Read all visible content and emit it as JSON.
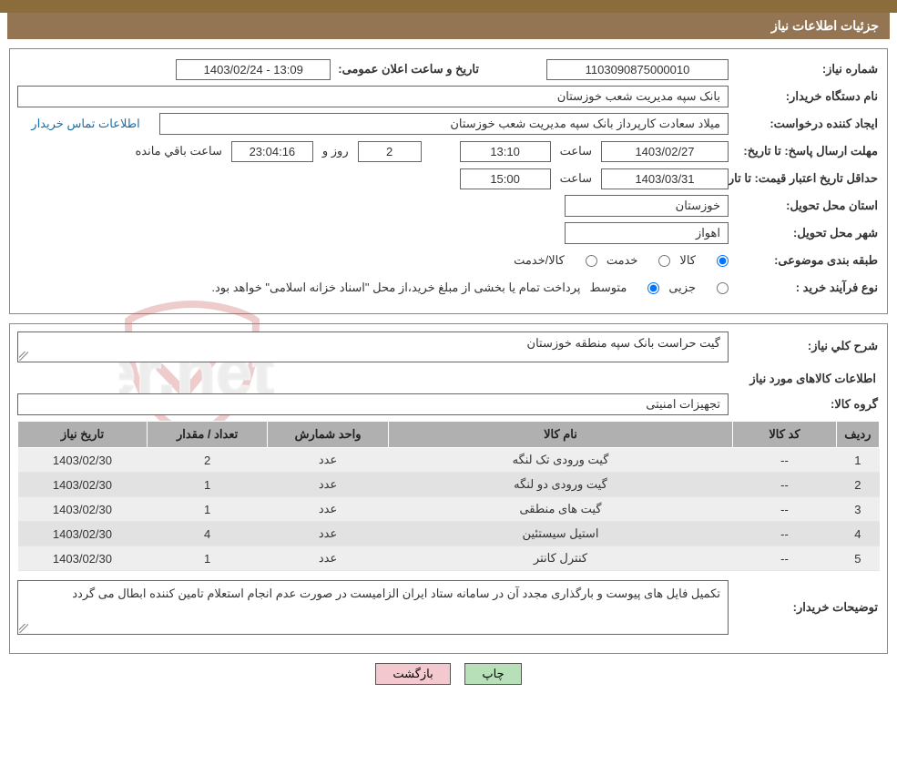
{
  "header": {
    "title": "جزئیات اطلاعات نیاز"
  },
  "colors": {
    "header_bg": "#947553",
    "header_text": "#ffffff",
    "border": "#888888",
    "box_border": "#666666",
    "link": "#1a6ea8",
    "table_header_bg": "#b0b0b0",
    "table_row_bg": "#eeeeee",
    "table_row_alt_bg": "#e2e2e2",
    "btn_green": "#b8e0b8",
    "btn_pink": "#f3c9cf",
    "watermark_red": "#c94a4a",
    "watermark_grey": "#bfbfbf"
  },
  "labels": {
    "need_number": "شماره نیاز:",
    "announce_datetime": "تاریخ و ساعت اعلان عمومی:",
    "buyer_org": "نام دستگاه خریدار:",
    "requester": "ایجاد کننده درخواست:",
    "contact_link": "اطلاعات تماس خریدار",
    "reply_deadline": "مهلت ارسال پاسخ: تا تاریخ:",
    "time_word": "ساعت",
    "days_and": "روز و",
    "hours_remaining": "ساعت باقي مانده",
    "min_valid_price": "حداقل تاریخ اعتبار قیمت: تا تاریخ:",
    "delivery_province": "استان محل تحویل:",
    "delivery_city": "شهر محل تحویل:",
    "subject_classification": "طبقه بندی موضوعی:",
    "cls_goods": "کالا",
    "cls_service": "خدمت",
    "cls_goods_service": "کالا/خدمت",
    "purchase_process": "نوع فرآیند خرید :",
    "proc_minor": "جزیی",
    "proc_medium": "متوسط",
    "payment_note": "پرداخت تمام یا بخشی از مبلغ خرید،از محل \"اسناد خزانه اسلامی\" خواهد بود.",
    "general_desc": "شرح کلي نياز:",
    "needed_goods_info": "اطلاعات کالاهای مورد نياز",
    "goods_group": "گروه کالا:",
    "buyer_notes": "توضيحات خریدار:"
  },
  "fields": {
    "need_number": "1103090875000010",
    "announce_datetime": "13:09 - 1403/02/24",
    "buyer_org": "بانک سپه مدیریت شعب خوزستان",
    "requester": "میلاد سعادت کارپرداز بانک سپه مدیریت شعب خوزستان",
    "reply_date": "1403/02/27",
    "reply_time": "13:10",
    "days_left": "2",
    "countdown": "23:04:16",
    "valid_price_date": "1403/03/31",
    "valid_price_time": "15:00",
    "delivery_province": "خوزستان",
    "delivery_city": "اهواز",
    "general_desc": "گیت حراست بانک سپه منطقه خوزستان",
    "goods_group": "تجهیزات امنیتی",
    "buyer_notes": "تکمیل فایل های پیوست و بارگذاری مجدد آن در سامانه ستاد ایران الزامیست  در صورت عدم انجام استعلام تامین کننده ابطال می گردد"
  },
  "radios": {
    "classification_selected": "goods",
    "process_selected": "medium"
  },
  "table": {
    "columns": [
      "ردیف",
      "کد کالا",
      "نام کالا",
      "واحد شمارش",
      "تعداد / مقدار",
      "تاريخ نياز"
    ],
    "col_widths_pct": [
      5,
      12,
      40,
      14,
      14,
      15
    ],
    "rows": [
      [
        "1",
        "--",
        "گیت ورودی تک لنگه",
        "عدد",
        "2",
        "1403/02/30"
      ],
      [
        "2",
        "--",
        "گیت ورودی دو لنگه",
        "عدد",
        "1",
        "1403/02/30"
      ],
      [
        "3",
        "--",
        "گیت های منطقی",
        "عدد",
        "1",
        "1403/02/30"
      ],
      [
        "4",
        "--",
        "استیل سیستئین",
        "عدد",
        "4",
        "1403/02/30"
      ],
      [
        "5",
        "--",
        "کنترل کانتر",
        "عدد",
        "1",
        "1403/02/30"
      ]
    ]
  },
  "buttons": {
    "print": "چاپ",
    "back": "بازگشت"
  },
  "watermark": {
    "text": "AriaTender.net"
  }
}
